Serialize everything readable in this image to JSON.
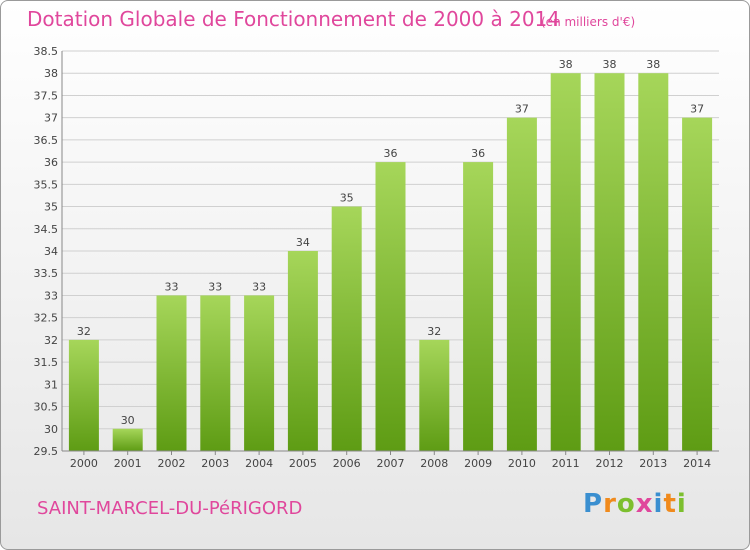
{
  "header": {
    "title": "Dotation Globale de Fonctionnement de 2000 à 2014",
    "unit": "(en milliers d'€)"
  },
  "footer": {
    "commune": "SAINT-MARCEL-DU-PéRIGORD",
    "brand": "Proxiti"
  },
  "colors": {
    "accent": "#e0479c",
    "bar_top": "#a6d65a",
    "bar_bottom": "#5e9c14",
    "grid": "#d0d0d0"
  },
  "chart_data": {
    "type": "bar",
    "categories": [
      "2000",
      "2001",
      "2002",
      "2003",
      "2004",
      "2005",
      "2006",
      "2007",
      "2008",
      "2009",
      "2010",
      "2011",
      "2012",
      "2013",
      "2014"
    ],
    "values": [
      32,
      30,
      33,
      33,
      33,
      34,
      35,
      36,
      32,
      36,
      37,
      38,
      38,
      38,
      37
    ],
    "ylim": [
      29.5,
      38.5
    ],
    "yticks": [
      "29.5",
      "30",
      "30.5",
      "31",
      "31.5",
      "32",
      "32.5",
      "33",
      "33.5",
      "34",
      "34.5",
      "35",
      "35.5",
      "36",
      "36.5",
      "37",
      "37.5",
      "38",
      "38.5"
    ],
    "grid": true,
    "title": "Dotation Globale de Fonctionnement de 2000 à 2014",
    "xlabel": "",
    "ylabel": ""
  }
}
